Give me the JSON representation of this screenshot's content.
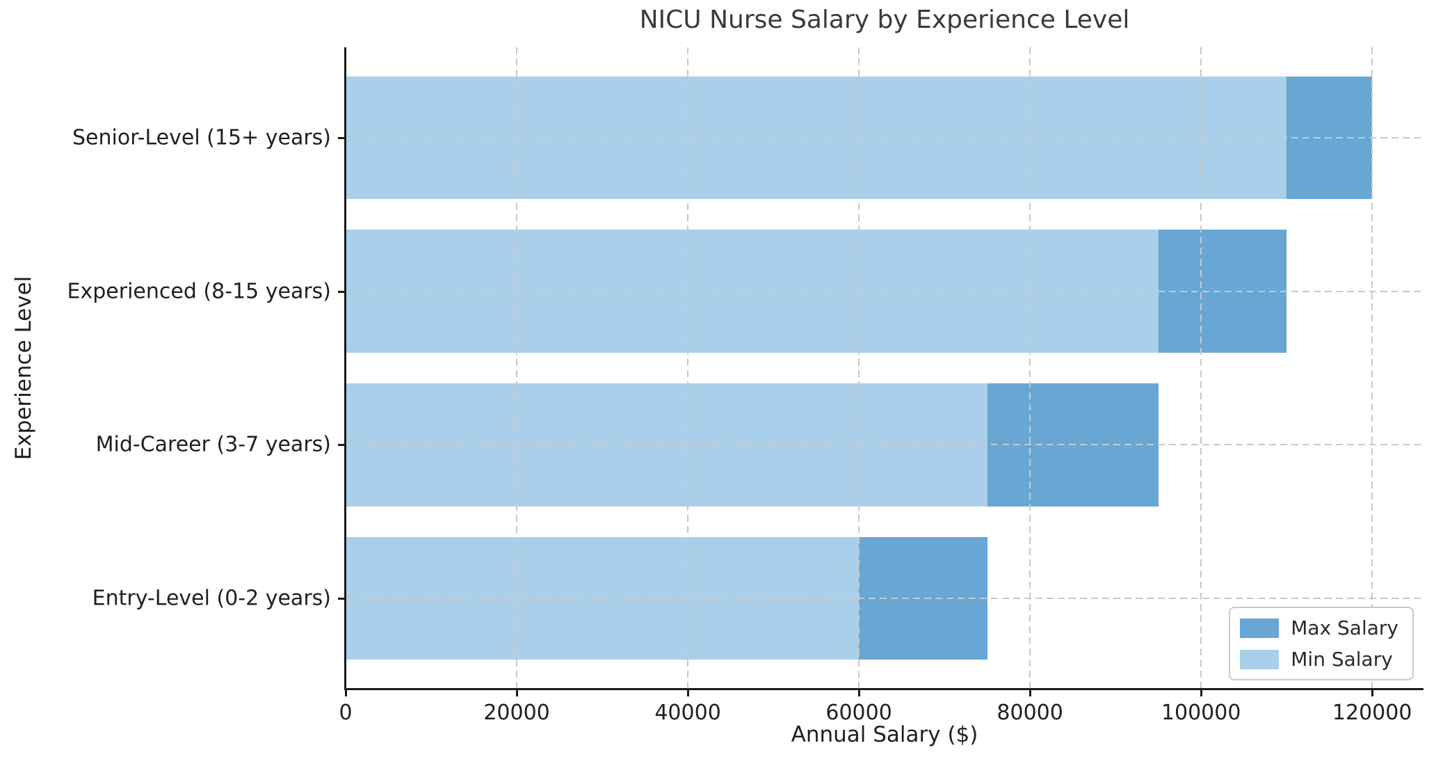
{
  "chart_data": {
    "type": "bar",
    "orientation": "horizontal",
    "title": "NICU Nurse Salary by Experience Level",
    "xlabel": "Annual Salary ($)",
    "ylabel": "Experience Level",
    "categories": [
      "Senior-Level (15+ years)",
      "Experienced (8-15 years)",
      "Mid-Career (3-7 years)",
      "Entry-Level (0-2 years)"
    ],
    "series": [
      {
        "name": "Max Salary",
        "color": "#68a6d3",
        "values": [
          120000,
          110000,
          95000,
          75000
        ]
      },
      {
        "name": "Min Salary",
        "color": "#a9cfea",
        "values": [
          110000,
          95000,
          75000,
          60000
        ]
      }
    ],
    "xticks": [
      0,
      20000,
      40000,
      60000,
      80000,
      100000,
      120000
    ],
    "xlim": [
      0,
      126000
    ],
    "grid": true,
    "grid_style": "dashed",
    "grid_color": "#c9c9c9",
    "spine_color": "#1a1a1a",
    "text_color": "#1f1f1f",
    "title_color": "#3a3a3a",
    "legend_position": "lower right",
    "legend": [
      "Max Salary",
      "Min Salary"
    ]
  }
}
